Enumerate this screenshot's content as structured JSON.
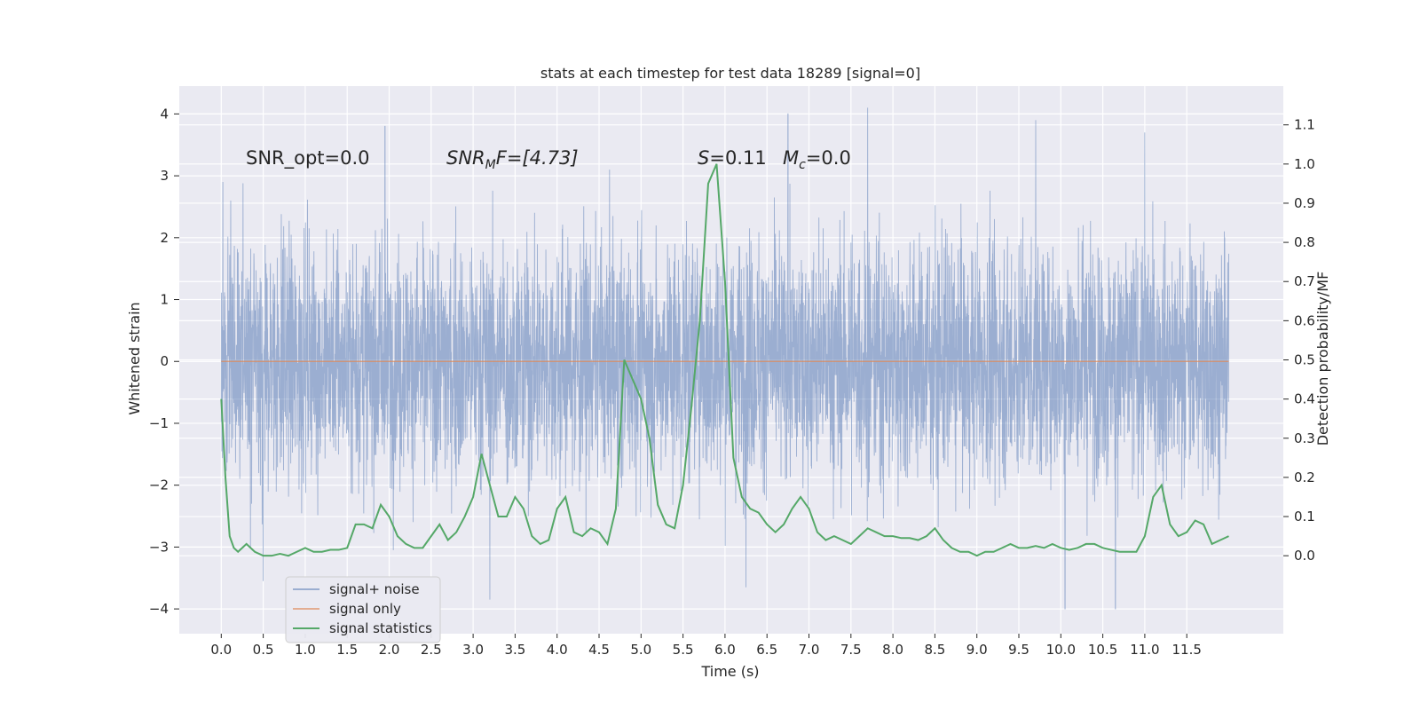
{
  "chart_data": {
    "type": "line",
    "title": "stats at each timestep for test data 18289 [signal=0]",
    "xlabel": "Time (s)",
    "ylabel_left": "Whitened strain",
    "ylabel_right": "Detection probability/MF",
    "xlim": [
      -0.5,
      12.65
    ],
    "ylim_left": [
      -4.4,
      4.45
    ],
    "ylim_right": [
      -0.199,
      1.199
    ],
    "x_ticks": [
      "0.0",
      "0.5",
      "1.0",
      "1.5",
      "2.0",
      "2.5",
      "3.0",
      "3.5",
      "4.0",
      "4.5",
      "5.0",
      "5.5",
      "6.0",
      "6.5",
      "7.0",
      "7.5",
      "8.0",
      "8.5",
      "9.0",
      "9.5",
      "10.0",
      "10.5",
      "11.0",
      "11.5"
    ],
    "y_ticks_left": [
      "4",
      "3",
      "2",
      "1",
      "0",
      "−1",
      "−2",
      "−3",
      "−4"
    ],
    "y_ticks_right": [
      "1.1",
      "1.0",
      "0.9",
      "0.8",
      "0.7",
      "0.6",
      "0.5",
      "0.4",
      "0.3",
      "0.2",
      "0.1",
      "0.0"
    ],
    "grid": true,
    "legend_position": "lower-left",
    "annotations": {
      "snr_opt": "SNR_opt=0.0",
      "snr_mf_main": "SNR",
      "snr_mf_sub": "M",
      "snr_mf_rest": "F=[4.73]",
      "s_main": "S",
      "s_rest": "=0.11",
      "mc_main": "M",
      "mc_sub": "c",
      "mc_rest": "=0.0"
    },
    "series": [
      {
        "name": "signal+ noise",
        "color": "#4c72b0",
        "x_range": [
          0.0,
          12.0
        ],
        "approx_envelope": [
          -3.0,
          3.0
        ],
        "notable_spikes": [
          {
            "x": 0.02,
            "y": 2.9
          },
          {
            "x": 1.95,
            "y": 3.8
          },
          {
            "x": 6.75,
            "y": 4.0
          },
          {
            "x": 7.7,
            "y": 4.1
          },
          {
            "x": 9.7,
            "y": 3.9
          },
          {
            "x": 11.0,
            "y": 3.7
          },
          {
            "x": 0.5,
            "y": -3.55
          },
          {
            "x": 3.2,
            "y": -3.85
          },
          {
            "x": 10.05,
            "y": -4.0
          },
          {
            "x": 10.65,
            "y": -4.0
          },
          {
            "x": 6.25,
            "y": -3.65
          }
        ]
      },
      {
        "name": "signal only",
        "color": "#dd8452",
        "x": [
          0.0,
          12.0
        ],
        "y": [
          0.0,
          0.0
        ]
      },
      {
        "name": "signal statistics",
        "color": "#55a868",
        "axis": "right",
        "x": [
          0.0,
          0.05,
          0.1,
          0.15,
          0.2,
          0.3,
          0.4,
          0.5,
          0.6,
          0.7,
          0.8,
          0.9,
          1.0,
          1.1,
          1.2,
          1.3,
          1.4,
          1.5,
          1.6,
          1.7,
          1.8,
          1.9,
          2.0,
          2.1,
          2.2,
          2.3,
          2.4,
          2.5,
          2.6,
          2.7,
          2.8,
          2.9,
          3.0,
          3.1,
          3.2,
          3.3,
          3.4,
          3.5,
          3.6,
          3.7,
          3.8,
          3.9,
          4.0,
          4.1,
          4.2,
          4.3,
          4.4,
          4.5,
          4.6,
          4.7,
          4.8,
          4.9,
          5.0,
          5.1,
          5.2,
          5.3,
          5.4,
          5.5,
          5.6,
          5.7,
          5.8,
          5.9,
          6.0,
          6.1,
          6.2,
          6.3,
          6.4,
          6.5,
          6.6,
          6.7,
          6.8,
          6.9,
          7.0,
          7.1,
          7.2,
          7.3,
          7.4,
          7.5,
          7.6,
          7.7,
          7.8,
          7.9,
          8.0,
          8.1,
          8.2,
          8.3,
          8.4,
          8.5,
          8.6,
          8.7,
          8.8,
          8.9,
          9.0,
          9.1,
          9.2,
          9.3,
          9.4,
          9.5,
          9.6,
          9.7,
          9.8,
          9.9,
          10.0,
          10.1,
          10.2,
          10.3,
          10.4,
          10.5,
          10.6,
          10.7,
          10.8,
          10.9,
          11.0,
          11.1,
          11.2,
          11.3,
          11.4,
          11.5,
          11.6,
          11.7,
          11.8,
          11.9,
          12.0
        ],
        "y": [
          0.4,
          0.2,
          0.05,
          0.02,
          0.01,
          0.03,
          0.01,
          0.0,
          0.0,
          0.005,
          0.0,
          0.01,
          0.02,
          0.01,
          0.01,
          0.015,
          0.015,
          0.02,
          0.08,
          0.08,
          0.07,
          0.13,
          0.1,
          0.05,
          0.03,
          0.02,
          0.02,
          0.05,
          0.08,
          0.04,
          0.06,
          0.1,
          0.15,
          0.26,
          0.18,
          0.1,
          0.1,
          0.15,
          0.12,
          0.05,
          0.03,
          0.04,
          0.12,
          0.15,
          0.06,
          0.05,
          0.07,
          0.06,
          0.03,
          0.12,
          0.5,
          0.45,
          0.4,
          0.3,
          0.13,
          0.08,
          0.07,
          0.18,
          0.38,
          0.6,
          0.95,
          1.0,
          0.7,
          0.25,
          0.15,
          0.12,
          0.11,
          0.08,
          0.06,
          0.08,
          0.12,
          0.15,
          0.12,
          0.06,
          0.04,
          0.05,
          0.04,
          0.03,
          0.05,
          0.07,
          0.06,
          0.05,
          0.05,
          0.045,
          0.045,
          0.04,
          0.05,
          0.07,
          0.04,
          0.02,
          0.01,
          0.01,
          0.0,
          0.01,
          0.01,
          0.02,
          0.03,
          0.02,
          0.02,
          0.025,
          0.02,
          0.03,
          0.02,
          0.015,
          0.02,
          0.03,
          0.03,
          0.02,
          0.015,
          0.01,
          0.01,
          0.01,
          0.05,
          0.15,
          0.18,
          0.08,
          0.05,
          0.06,
          0.09,
          0.08,
          0.03,
          0.04,
          0.05
        ]
      }
    ]
  }
}
